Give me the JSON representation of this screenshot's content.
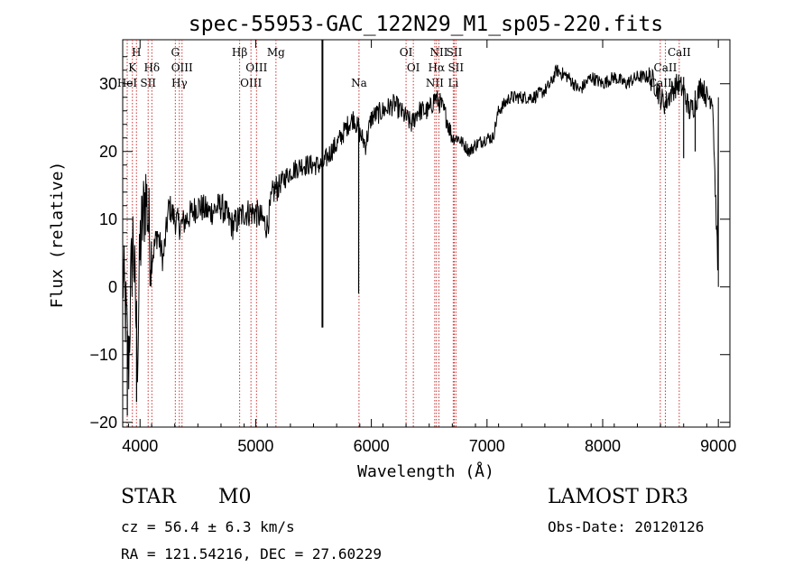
{
  "chart_data": {
    "type": "line",
    "title": "spec-55953-GAC_122N29_M1_sp05-220.fits",
    "xlabel": "Wavelength (Å)",
    "ylabel": "Flux (relative)",
    "xlim": [
      3850,
      9100
    ],
    "ylim": [
      -20.7,
      36.5
    ],
    "x_ticks": [
      4000,
      5000,
      6000,
      7000,
      8000,
      9000
    ],
    "y_ticks": [
      -20,
      -10,
      0,
      10,
      20,
      30
    ],
    "grid": false,
    "series": [
      {
        "name": "spectrum",
        "color": "#000000",
        "x": [
          3850,
          3880,
          3900,
          3920,
          3940,
          3960,
          3980,
          4000,
          4050,
          4100,
          4150,
          4200,
          4250,
          4300,
          4350,
          4400,
          4500,
          4600,
          4700,
          4800,
          4900,
          5000,
          5100,
          5150,
          5200,
          5300,
          5400,
          5500,
          5577,
          5650,
          5700,
          5800,
          5850,
          5890,
          5950,
          6000,
          6100,
          6200,
          6300,
          6350,
          6400,
          6500,
          6550,
          6600,
          6650,
          6700,
          6750,
          6800,
          6850,
          6900,
          7000,
          7050,
          7100,
          7200,
          7300,
          7400,
          7500,
          7550,
          7600,
          7700,
          7800,
          7900,
          8000,
          8100,
          8200,
          8300,
          8400,
          8450,
          8500,
          8540,
          8600,
          8650,
          8700,
          8750,
          8800,
          8850,
          8900,
          8950,
          9000
        ],
        "y": [
          2,
          -5,
          -12,
          0,
          8,
          -3,
          -10,
          6,
          14,
          4,
          8,
          4,
          12,
          10,
          9,
          10,
          12,
          11,
          12,
          9,
          11,
          11,
          9,
          14,
          15,
          17,
          18,
          18,
          18,
          20,
          21,
          24,
          25,
          23,
          21,
          25,
          26,
          27,
          25,
          24,
          26,
          26,
          28,
          27,
          25,
          22,
          22,
          21,
          20,
          21,
          22,
          22,
          26,
          28,
          28,
          28,
          29,
          30,
          32,
          31,
          29,
          31,
          30,
          31,
          30,
          31,
          31,
          30,
          28,
          27,
          29,
          30,
          29,
          26,
          27,
          30,
          28,
          28,
          0
        ]
      }
    ],
    "spikes": [
      {
        "x": 3890,
        "y_min": -19
      },
      {
        "x": 3970,
        "y_min": -17
      },
      {
        "x": 5577,
        "y_min": -6,
        "y_max": 36.5
      },
      {
        "x": 5890,
        "y_min": -1
      },
      {
        "x": 8700,
        "y_min": 19
      },
      {
        "x": 8800,
        "y_min": 20
      }
    ],
    "line_color": "#cc3333",
    "lines": [
      {
        "name": "H",
        "x": 3969,
        "row": 0
      },
      {
        "name": "K",
        "x": 3934,
        "row": 1
      },
      {
        "name": "HeI",
        "x": 3889,
        "row": 2
      },
      {
        "name": "SII",
        "x": 4070,
        "row": 2
      },
      {
        "name": "Hδ",
        "x": 4102,
        "row": 1
      },
      {
        "name": "G",
        "x": 4305,
        "row": 0
      },
      {
        "name": "OIII",
        "x": 4363,
        "row": 1
      },
      {
        "name": "Hγ",
        "x": 4340,
        "row": 2
      },
      {
        "name": "Hβ",
        "x": 4861,
        "row": 0
      },
      {
        "name": "OIII",
        "x": 4959,
        "row": 2
      },
      {
        "name": "OIII",
        "x": 5007,
        "row": 1
      },
      {
        "name": "Mg",
        "x": 5175,
        "row": 0
      },
      {
        "name": "Na",
        "x": 5893,
        "row": 2
      },
      {
        "name": "OI",
        "x": 6300,
        "row": 0
      },
      {
        "name": "OI",
        "x": 6363,
        "row": 1
      },
      {
        "name": "NII",
        "x": 6548,
        "row": 2
      },
      {
        "name": "NII",
        "x": 6584,
        "row": 0
      },
      {
        "name": "Hα",
        "x": 6563,
        "row": 1
      },
      {
        "name": "SII",
        "x": 6717,
        "row": 0
      },
      {
        "name": "SII",
        "x": 6731,
        "row": 1
      },
      {
        "name": "Li",
        "x": 6708,
        "row": 2
      },
      {
        "name": "CaII",
        "x": 8498,
        "row": 2
      },
      {
        "name": "CaII",
        "x": 8542,
        "row": 1
      },
      {
        "name": "CaII",
        "x": 8662,
        "row": 0
      }
    ]
  },
  "info": {
    "object_class": "STAR",
    "subclass": "M0",
    "survey": "LAMOST DR3",
    "cz_line": "cz = 56.4 ± 6.3 km/s",
    "obs_date": "Obs-Date: 20120126",
    "radec_line": "RA = 121.54216, DEC =  27.60229"
  }
}
